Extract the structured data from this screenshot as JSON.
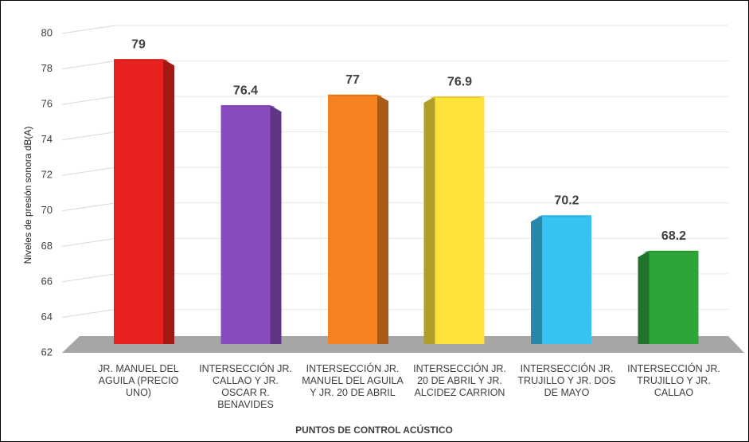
{
  "chart_data": {
    "type": "bar3d",
    "categories": [
      "JR. MANUEL DEL AGUILA (PRECIO UNO)",
      "INTERSECCIÓN JR. CALLAO Y JR. OSCAR R. BENAVIDES",
      "INTERSECCIÓN JR. MANUEL DEL AGUILA Y JR. 20 DE ABRIL",
      "INTERSECCIÓN JR. 20 DE ABRIL Y JR. ALCIDEZ CARRION",
      "INTERSECCIÓN JR. TRUJILLO Y JR. DOS DE MAYO",
      "INTERSECCIÓN JR. TRUJILLO Y JR. CALLAO"
    ],
    "values": [
      79,
      76.4,
      77,
      76.9,
      70.2,
      68.2
    ],
    "colors": [
      "#e8231f",
      "#8a4bbf",
      "#f5821f",
      "#fde23a",
      "#36c3f2",
      "#2ea43a"
    ],
    "ylabel": "Niveles de presión sonora dB(A)",
    "xlabel": "PUNTOS DE CONTROL ACÚSTICO",
    "ylim": [
      62,
      80
    ],
    "yticks": [
      62,
      64,
      66,
      68,
      70,
      72,
      74,
      76,
      78,
      80
    ],
    "grid": true
  }
}
